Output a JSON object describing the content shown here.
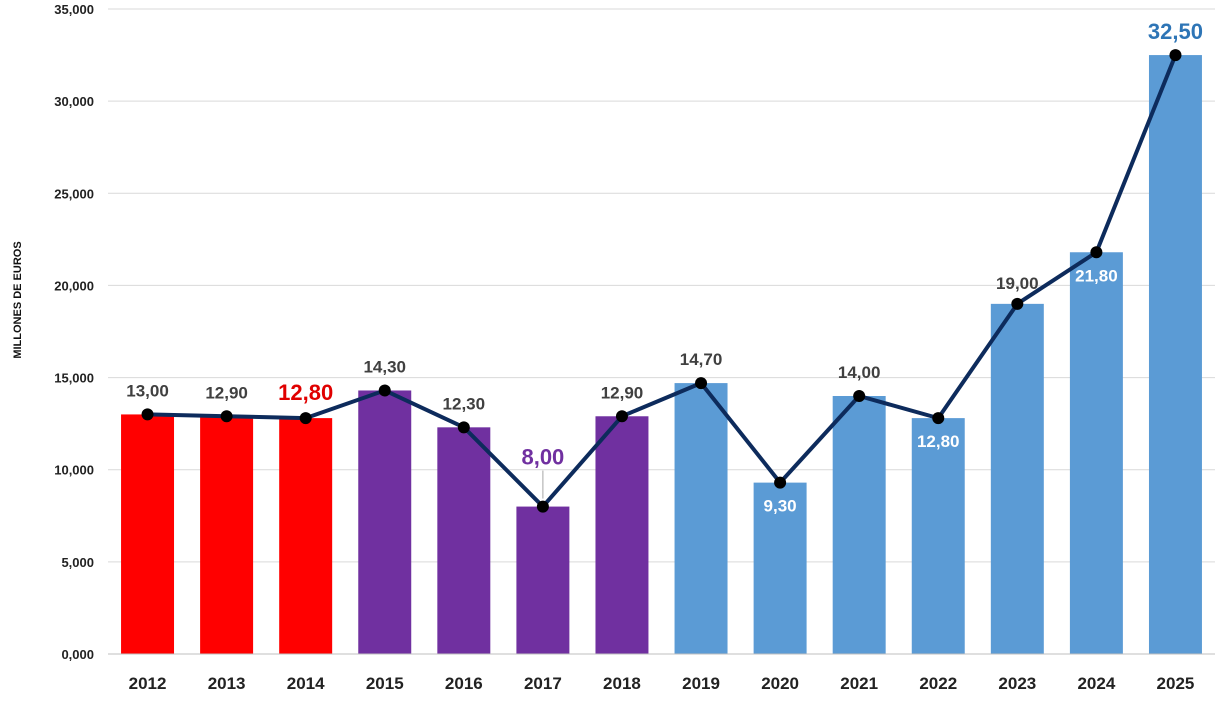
{
  "chart_data": {
    "type": "bar",
    "ylabel": "MILLONES DE EUROS",
    "ylim": [
      0,
      35000
    ],
    "yticks": [
      "0,000",
      "5,000",
      "10,000",
      "15,000",
      "20,000",
      "25,000",
      "30,000",
      "35,000"
    ],
    "grid": true,
    "legend": "none",
    "categories": [
      "2012",
      "2013",
      "2014",
      "2015",
      "2016",
      "2017",
      "2018",
      "2019",
      "2020",
      "2021",
      "2022",
      "2023",
      "2024",
      "2025"
    ],
    "values": [
      13000,
      12900,
      12800,
      14300,
      12300,
      8000,
      12900,
      14700,
      9300,
      14000,
      12800,
      19000,
      21800,
      32500
    ],
    "value_labels": [
      "13,00",
      "12,90",
      "12,80",
      "14,30",
      "12,30",
      "8,00",
      "12,90",
      "14,70",
      "9,30",
      "14,00",
      "12,80",
      "19,00",
      "21,80",
      "32,50"
    ],
    "bar_colors": [
      "#ff0000",
      "#ff0000",
      "#ff0000",
      "#7030a0",
      "#7030a0",
      "#7030a0",
      "#7030a0",
      "#5b9bd5",
      "#5b9bd5",
      "#5b9bd5",
      "#5b9bd5",
      "#5b9bd5",
      "#5b9bd5",
      "#5b9bd5"
    ],
    "line": {
      "color": "#0d2b5c",
      "marker_color": "#000000"
    },
    "label_colors": {
      "default": "#404040",
      "highlight_2014": "#e00000",
      "highlight_2017": "#7030a0",
      "inside": "#ffffff",
      "highlight_2025": "#2e75b6"
    }
  }
}
